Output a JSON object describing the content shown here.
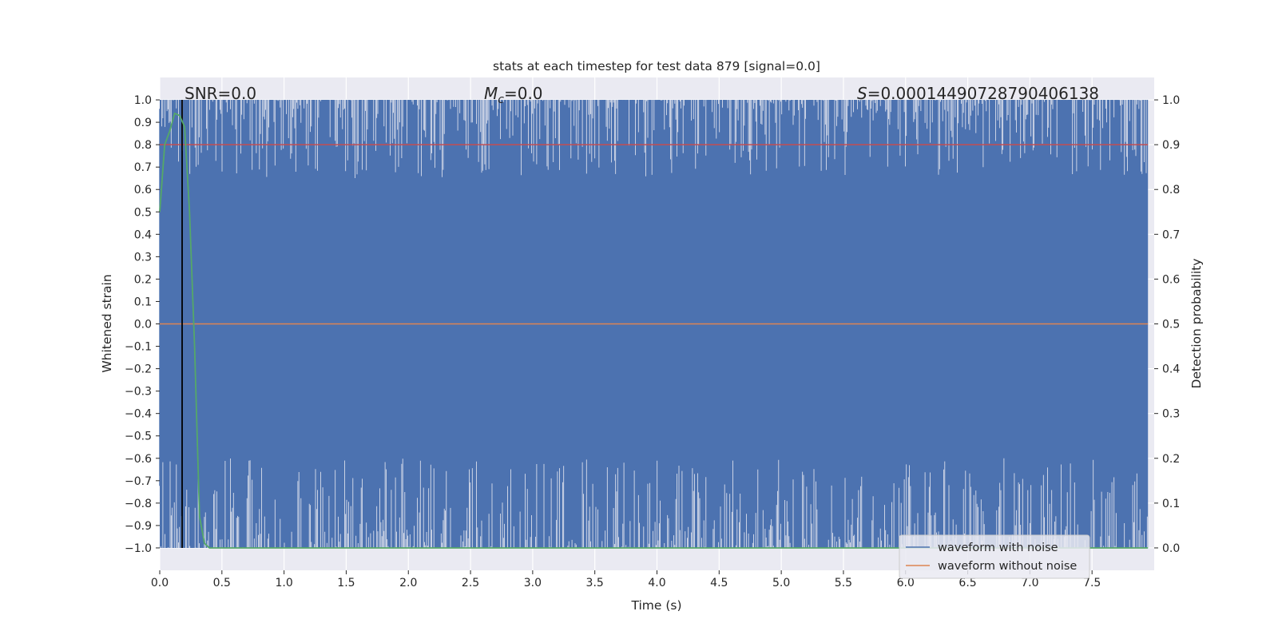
{
  "chart_data": {
    "type": "line",
    "title": "stats at each timestep for test data 879 [signal=0.0]",
    "xlabel": "Time (s)",
    "ylabel_left": "Whitened strain",
    "ylabel_right": "Detection probability",
    "xlim": [
      0.0,
      8.0
    ],
    "ylim_left": [
      -1.1,
      1.1
    ],
    "ylim_right": [
      -0.05,
      1.05
    ],
    "x_ticks": [
      "0.0",
      "0.5",
      "1.0",
      "1.5",
      "2.0",
      "2.5",
      "3.0",
      "3.5",
      "4.0",
      "4.5",
      "5.0",
      "5.5",
      "6.0",
      "6.5",
      "7.0",
      "7.5"
    ],
    "y_left_ticks": [
      "1.0",
      "0.9",
      "0.8",
      "0.7",
      "0.6",
      "0.5",
      "0.4",
      "0.3",
      "0.2",
      "0.1",
      "0.0",
      "−0.1",
      "−0.2",
      "−0.3",
      "−0.4",
      "−0.5",
      "−0.6",
      "−0.7",
      "−0.8",
      "−0.9",
      "−1.0"
    ],
    "y_right_ticks": [
      "1.0",
      "0.9",
      "0.8",
      "0.7",
      "0.6",
      "0.5",
      "0.4",
      "0.3",
      "0.2",
      "0.1",
      "0.0"
    ],
    "grid": true,
    "legend_position": "lower-right",
    "annotations": {
      "snr": "SNR=0.0",
      "mc_symbol": "M",
      "mc_sub": "c",
      "mc_value": "=0.0",
      "s_symbol": "S",
      "s_value": "=0.00014490728790406138"
    },
    "series": [
      {
        "name": "waveform with noise",
        "color": "#4c72b0",
        "description": "dense clipped noise filling the band between -1.0 and 1.0",
        "range": [
          -1.0,
          1.0
        ]
      },
      {
        "name": "waveform without noise",
        "color": "#dd8452",
        "x": [
          0.0,
          8.0
        ],
        "y": [
          0.0,
          0.0
        ]
      },
      {
        "color": "#55a868",
        "axis": "right",
        "x": [
          0.0,
          0.04,
          0.08,
          0.12,
          0.16,
          0.2,
          0.24,
          0.28,
          0.32,
          0.36,
          0.4,
          1.0,
          2.0,
          3.0,
          4.0,
          5.0,
          6.0,
          7.0,
          7.95
        ],
        "y": [
          0.75,
          0.9,
          0.93,
          0.97,
          0.965,
          0.94,
          0.75,
          0.45,
          0.07,
          0.01,
          0.0,
          0.0,
          0.0,
          0.0,
          0.0,
          0.0,
          0.0,
          0.0,
          0.0
        ]
      },
      {
        "color": "#000000",
        "type": "vline",
        "x": 0.18
      },
      {
        "color": "#c44e52",
        "axis": "right",
        "type": "hline",
        "y": 0.9
      }
    ]
  }
}
